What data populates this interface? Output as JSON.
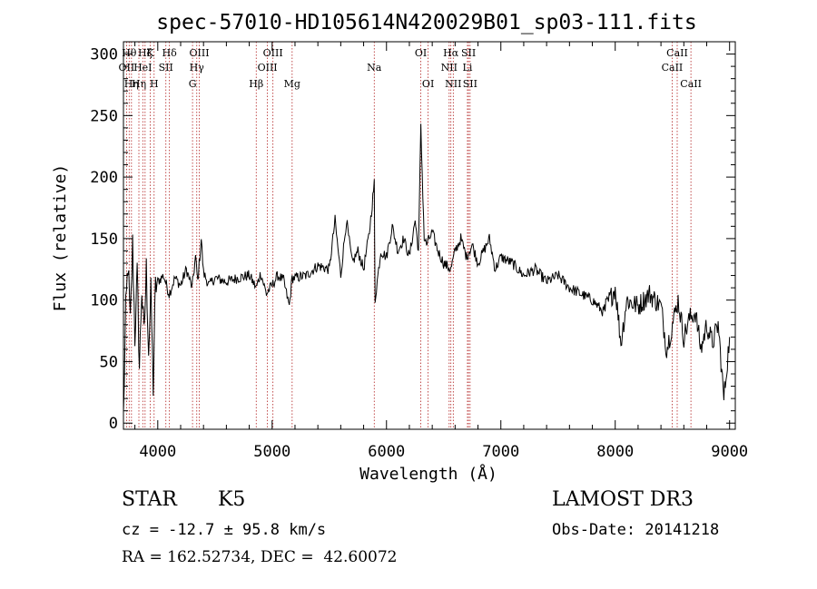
{
  "chart_data": {
    "type": "line",
    "title": "spec-57010-HD105614N420029B01_sp03-111.fits",
    "xlabel": "Wavelength (Å)",
    "ylabel": "Flux (relative)",
    "xlim": [
      3700,
      9050
    ],
    "ylim": [
      -5,
      310
    ],
    "xticks": [
      4000,
      5000,
      6000,
      7000,
      8000,
      9000
    ],
    "yticks": [
      0,
      50,
      100,
      150,
      200,
      250,
      300
    ],
    "grid": false,
    "colors": {
      "spectrum": "#000000",
      "lines": "#b22222",
      "axes": "#000000"
    },
    "series": [
      {
        "name": "flux",
        "x": [
          3700,
          3720,
          3740,
          3760,
          3780,
          3800,
          3820,
          3840,
          3860,
          3880,
          3900,
          3920,
          3940,
          3960,
          3980,
          4000,
          4050,
          4100,
          4150,
          4200,
          4250,
          4300,
          4330,
          4350,
          4380,
          4400,
          4450,
          4500,
          4600,
          4700,
          4800,
          4861,
          4900,
          4950,
          5000,
          5050,
          5100,
          5150,
          5175,
          5200,
          5300,
          5400,
          5500,
          5550,
          5600,
          5650,
          5700,
          5750,
          5800,
          5850,
          5893,
          5900,
          5950,
          6000,
          6050,
          6100,
          6150,
          6200,
          6250,
          6280,
          6300,
          6330,
          6350,
          6400,
          6450,
          6500,
          6563,
          6600,
          6650,
          6700,
          6750,
          6800,
          6850,
          6900,
          6950,
          7000,
          7100,
          7200,
          7300,
          7400,
          7500,
          7600,
          7700,
          7800,
          7900,
          8000,
          8050,
          8100,
          8200,
          8300,
          8400,
          8450,
          8500,
          8550,
          8600,
          8650,
          8700,
          8750,
          8800,
          8850,
          8900,
          8950,
          9000
        ],
        "values": [
          5,
          90,
          130,
          80,
          145,
          70,
          120,
          45,
          110,
          70,
          125,
          60,
          105,
          30,
          110,
          115,
          120,
          105,
          118,
          112,
          125,
          110,
          135,
          115,
          150,
          122,
          112,
          118,
          115,
          118,
          120,
          110,
          122,
          105,
          112,
          120,
          116,
          95,
          118,
          118,
          120,
          128,
          125,
          165,
          120,
          165,
          130,
          140,
          125,
          155,
          195,
          100,
          140,
          135,
          160,
          140,
          150,
          135,
          165,
          140,
          240,
          150,
          145,
          155,
          140,
          130,
          125,
          140,
          150,
          135,
          145,
          130,
          140,
          150,
          125,
          135,
          130,
          120,
          125,
          115,
          120,
          110,
          105,
          100,
          90,
          110,
          65,
          100,
          95,
          105,
          95,
          60,
          80,
          100,
          70,
          85,
          90,
          60,
          80,
          65,
          80,
          20,
          70
        ]
      }
    ],
    "lines": [
      {
        "x": 3727,
        "label": "OII",
        "row": 1
      },
      {
        "x": 3750,
        "label": "Hθ",
        "row": 0
      },
      {
        "x": 3770,
        "label": "Hη",
        "row": 2
      },
      {
        "x": 3835,
        "label": "Hη",
        "row": 2
      },
      {
        "x": 3869,
        "label": "HeI",
        "row": 1
      },
      {
        "x": 3889,
        "label": "Hζ",
        "row": 0
      },
      {
        "x": 3934,
        "label": "K",
        "row": 0
      },
      {
        "x": 3968,
        "label": "H",
        "row": 2
      },
      {
        "x": 4071,
        "label": "SII",
        "row": 1
      },
      {
        "x": 4102,
        "label": "Hδ",
        "row": 0
      },
      {
        "x": 4304,
        "label": "G",
        "row": 2
      },
      {
        "x": 4341,
        "label": "Hγ",
        "row": 1
      },
      {
        "x": 4363,
        "label": "OIII",
        "row": 0
      },
      {
        "x": 4861,
        "label": "Hβ",
        "row": 2
      },
      {
        "x": 4959,
        "label": "OIII",
        "row": 1
      },
      {
        "x": 5007,
        "label": "OIII",
        "row": 0
      },
      {
        "x": 5175,
        "label": "Mg",
        "row": 2
      },
      {
        "x": 5893,
        "label": "Na",
        "row": 1
      },
      {
        "x": 6300,
        "label": "OI",
        "row": 0
      },
      {
        "x": 6364,
        "label": "OI",
        "row": 2
      },
      {
        "x": 6548,
        "label": "NII",
        "row": 1
      },
      {
        "x": 6563,
        "label": "Hα",
        "row": 0
      },
      {
        "x": 6584,
        "label": "NII",
        "row": 2
      },
      {
        "x": 6708,
        "label": "Li",
        "row": 1
      },
      {
        "x": 6717,
        "label": "SII",
        "row": 0
      },
      {
        "x": 6731,
        "label": "SII",
        "row": 2
      },
      {
        "x": 8498,
        "label": "CaII",
        "row": 1
      },
      {
        "x": 8542,
        "label": "CaII",
        "row": 0
      },
      {
        "x": 8662,
        "label": "CaII",
        "row": 2
      }
    ]
  },
  "info": {
    "object_class": "STAR",
    "subclass": "K5",
    "survey": "LAMOST DR3",
    "redshift": "cz = -12.7 ± 95.8 km/s",
    "obs_date": "Obs-Date: 20141218",
    "coords": "RA = 162.52734, DEC =  42.60072"
  }
}
